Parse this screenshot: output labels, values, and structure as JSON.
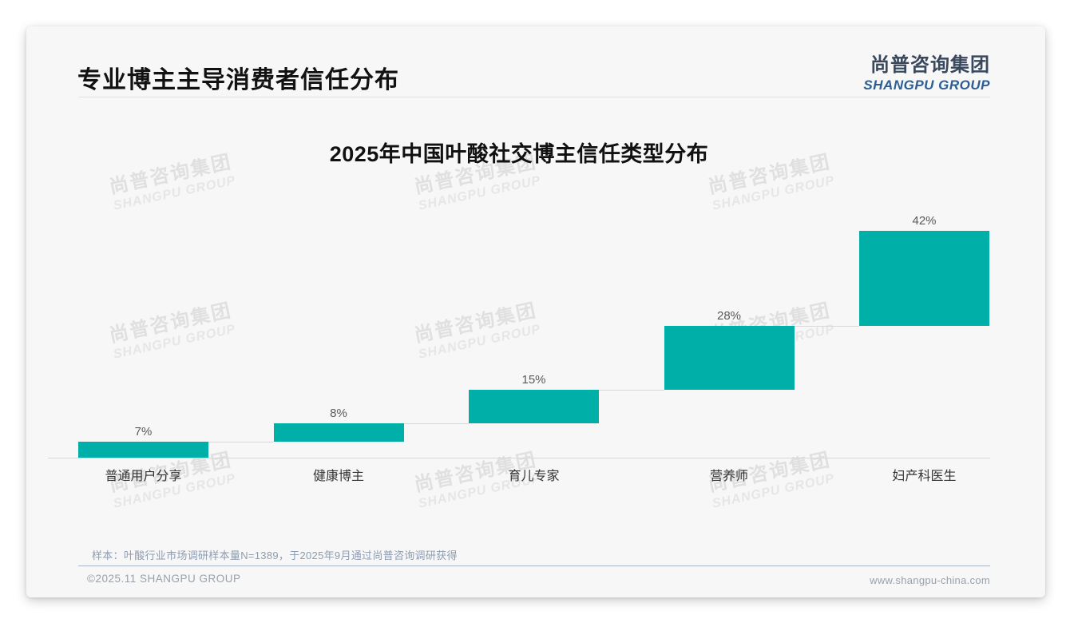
{
  "page": {
    "title": "专业博主主导消费者信任分布",
    "logo": {
      "cn": "尚普咨询集团",
      "en": "SHANGPU GROUP"
    },
    "watermark": {
      "cn": "尚普咨询集团",
      "en": "SHANGPU GROUP"
    },
    "footnote": "样本：叶酸行业市场调研样本量N=1389，于2025年9月通过尚普咨询调研获得",
    "footer_left": "©2025.11 SHANGPU GROUP",
    "footer_right": "www.shangpu-china.com"
  },
  "chart_data": {
    "type": "bar",
    "subtype": "waterfall-ascending",
    "title": "2025年中国叶酸社交博主信任类型分布",
    "categories": [
      "普通用户分享",
      "健康博主",
      "育儿专家",
      "营养师",
      "妇产科医生"
    ],
    "values": [
      7,
      8,
      15,
      28,
      42
    ],
    "value_labels": [
      "7%",
      "8%",
      "15%",
      "28%",
      "42%"
    ],
    "unit": "%",
    "total": 100,
    "ylim": [
      0,
      100
    ],
    "grid": "off",
    "legend": "none",
    "bar_color": "#00b0a8",
    "value_label_color": "#595959",
    "connector_color": "#d9d9d9"
  }
}
